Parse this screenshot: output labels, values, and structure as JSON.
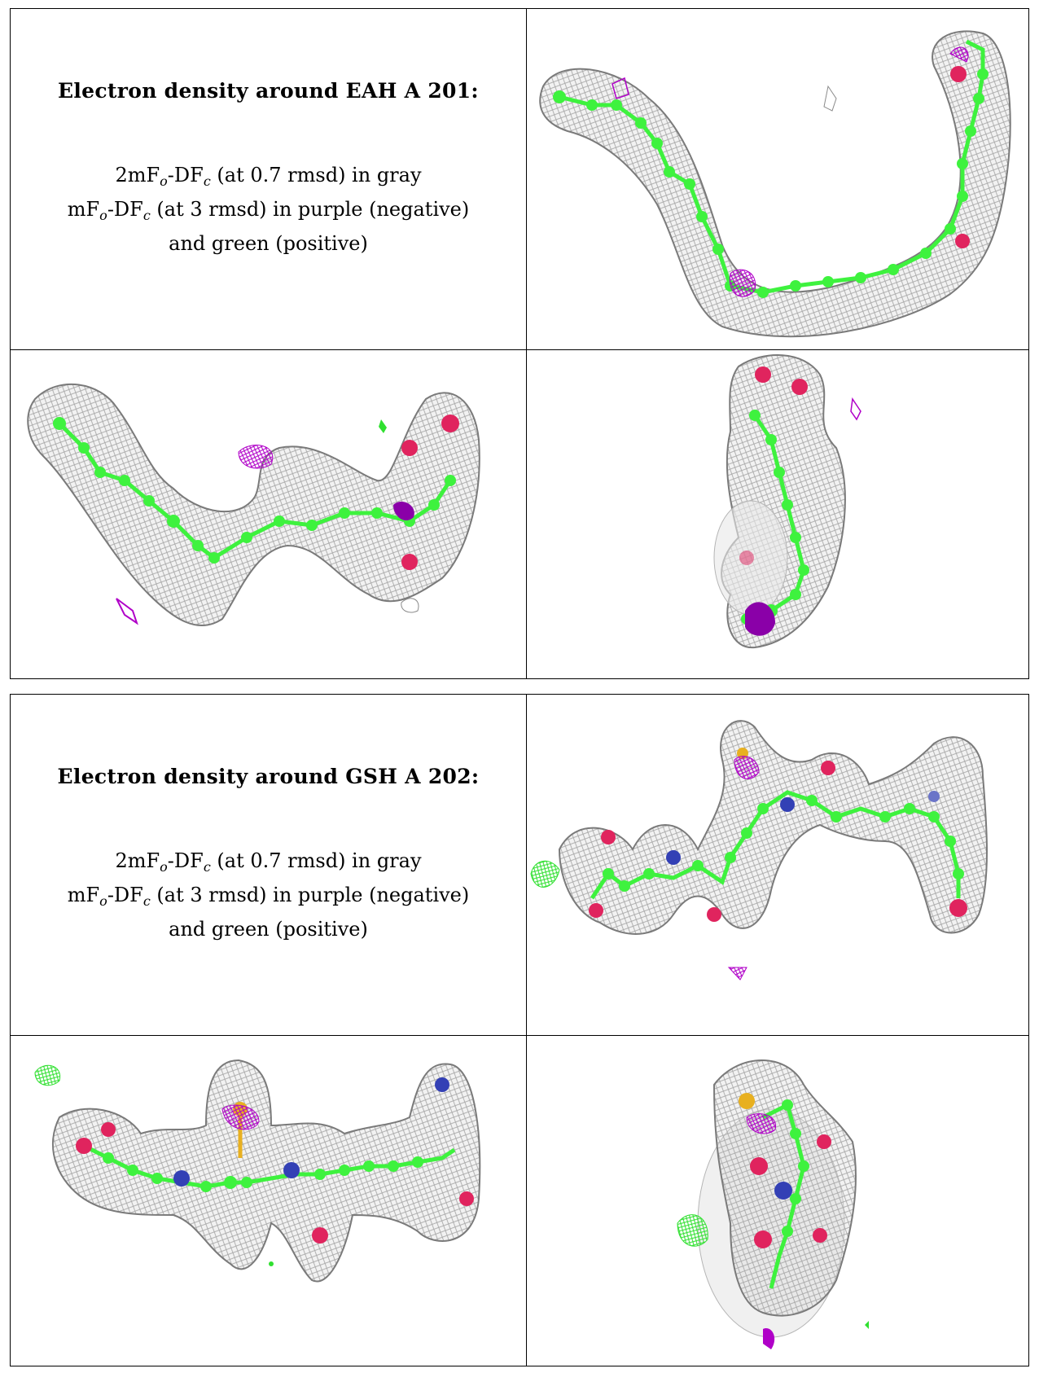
{
  "panels": [
    {
      "title": "Electron density around EAH A 201:",
      "lines": [
        {
          "a": "2mF",
          "b": "o",
          "c": "-DF",
          "d": "c",
          "e": " (at 0.7 rmsd) in gray"
        },
        {
          "a": "mF",
          "b": "o",
          "c": "-DF",
          "d": "c",
          "e": " (at 3 rmsd) in purple (negative)"
        },
        {
          "a": "and green (positive)",
          "b": "",
          "c": "",
          "d": "",
          "e": ""
        }
      ]
    },
    {
      "title": "Electron density around GSH A 202:",
      "lines": [
        {
          "a": "2mF",
          "b": "o",
          "c": "-DF",
          "d": "c",
          "e": " (at 0.7 rmsd) in gray"
        },
        {
          "a": "mF",
          "b": "o",
          "c": "-DF",
          "d": "c",
          "e": " (at 3 rmsd) in purple (negative)"
        },
        {
          "a": "and green (positive)",
          "b": "",
          "c": "",
          "d": "",
          "e": ""
        }
      ]
    }
  ],
  "colors": {
    "mesh": "#8a8a8a",
    "carbon": "#3ef23e",
    "oxygen": "#e0245e",
    "nitrogen": "#3340b5",
    "sulfur": "#e8b020",
    "negative": "#b000c8",
    "positive": "#30e030"
  }
}
